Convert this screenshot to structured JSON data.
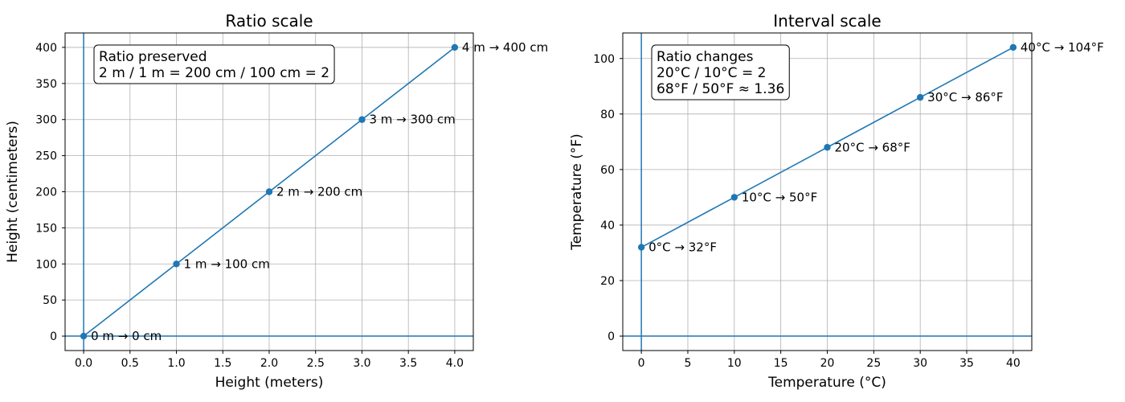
{
  "chart_data": [
    {
      "type": "line",
      "title": "Ratio scale",
      "xlabel": "Height (meters)",
      "ylabel": "Height (centimeters)",
      "xlim": [
        -0.2,
        4.2
      ],
      "ylim": [
        -20,
        420
      ],
      "xticks": [
        0.0,
        0.5,
        1.0,
        1.5,
        2.0,
        2.5,
        3.0,
        3.5,
        4.0
      ],
      "xtick_labels": [
        "0.0",
        "0.5",
        "1.0",
        "1.5",
        "2.0",
        "2.5",
        "3.0",
        "3.5",
        "4.0"
      ],
      "yticks": [
        0,
        50,
        100,
        150,
        200,
        250,
        300,
        350,
        400
      ],
      "ytick_labels": [
        "0",
        "50",
        "100",
        "150",
        "200",
        "250",
        "300",
        "350",
        "400"
      ],
      "grid": true,
      "x": [
        0,
        1,
        2,
        3,
        4
      ],
      "y": [
        0,
        100,
        200,
        300,
        400
      ],
      "point_labels": [
        "0 m → 0 cm",
        "1 m → 100 cm",
        "2 m → 200 cm",
        "3 m → 300 cm",
        "4 m → 400 cm"
      ],
      "reference_lines": {
        "axvline": 0,
        "axhline": 0
      },
      "textbox": [
        "Ratio preserved",
        "2 m / 1 m = 200 cm / 100 cm = 2"
      ],
      "color": "#1f77b4"
    },
    {
      "type": "line",
      "title": "Interval scale",
      "xlabel": "Temperature (°C)",
      "ylabel": "Temperature (°F)",
      "xlim": [
        -2,
        42
      ],
      "ylim": [
        -5.2,
        109.2
      ],
      "xticks": [
        0,
        5,
        10,
        15,
        20,
        25,
        30,
        35,
        40
      ],
      "xtick_labels": [
        "0",
        "5",
        "10",
        "15",
        "20",
        "25",
        "30",
        "35",
        "40"
      ],
      "yticks": [
        0,
        20,
        40,
        60,
        80,
        100
      ],
      "ytick_labels": [
        "0",
        "20",
        "40",
        "60",
        "80",
        "100"
      ],
      "grid": true,
      "x": [
        0,
        10,
        20,
        30,
        40
      ],
      "y": [
        32,
        50,
        68,
        86,
        104
      ],
      "point_labels": [
        "0°C → 32°F",
        "10°C → 50°F",
        "20°C → 68°F",
        "30°C → 86°F",
        "40°C → 104°F"
      ],
      "reference_lines": {
        "axvline": 0,
        "axhline": 0
      },
      "textbox": [
        "Ratio changes",
        "20°C / 10°C = 2",
        "68°F / 50°F ≈ 1.36"
      ],
      "color": "#1f77b4"
    }
  ]
}
